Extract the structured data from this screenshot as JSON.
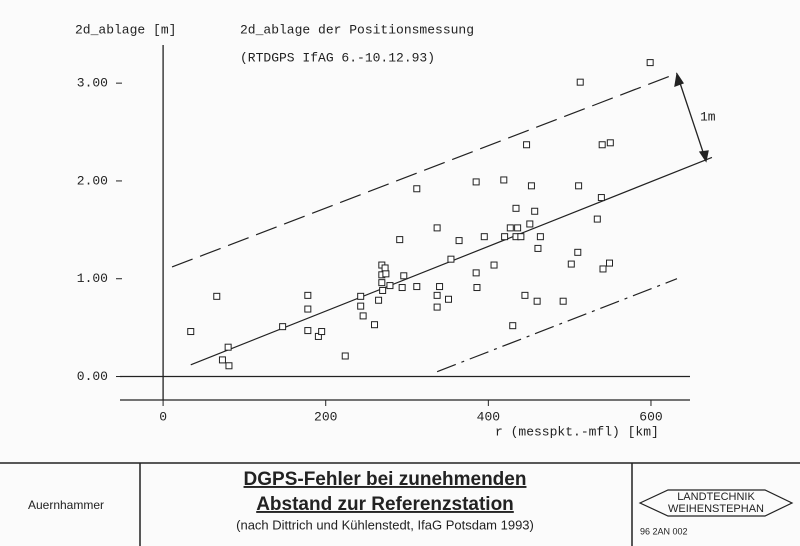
{
  "chart_data": {
    "type": "scatter",
    "title": "2d_ablage der Positionsmessung",
    "subtitle": "(RTDGPS IfAG 6.-10.12.93)",
    "y_label": "2d_ablage [m]",
    "x_label": "r (messpkt.-mfl) [km]",
    "annotation": "1m",
    "xlim": [
      -53,
      648
    ],
    "ylim": [
      -0.24,
      3.39
    ],
    "xticks": [
      0,
      200,
      400,
      600
    ],
    "yticks": [
      {
        "value": 0,
        "label": "0.00"
      },
      {
        "value": 1,
        "label": "1.00"
      },
      {
        "value": 2,
        "label": "2.00"
      },
      {
        "value": 3,
        "label": "3.00"
      }
    ],
    "color": "#222222",
    "x": [
      34,
      66,
      73,
      80,
      81,
      147,
      178,
      178,
      178,
      191,
      195,
      224,
      243,
      243,
      246,
      260,
      265,
      269,
      269,
      269,
      270,
      273,
      274,
      279,
      291,
      294,
      296,
      312,
      312,
      337,
      337,
      337,
      340,
      351,
      354,
      364,
      385,
      385,
      386,
      395,
      407,
      419,
      420,
      427,
      430,
      434,
      434,
      436,
      440,
      445,
      447,
      451,
      453,
      457,
      460,
      461,
      464,
      492,
      502,
      510,
      511,
      513,
      534,
      539,
      540,
      541,
      549,
      550,
      599
    ],
    "y": [
      0.46,
      0.82,
      0.17,
      0.3,
      0.11,
      0.51,
      0.83,
      0.69,
      0.47,
      0.41,
      0.46,
      0.21,
      0.82,
      0.72,
      0.62,
      0.53,
      0.78,
      1.14,
      1.04,
      0.96,
      0.88,
      1.11,
      1.05,
      0.93,
      1.4,
      0.91,
      1.03,
      1.92,
      0.92,
      1.52,
      0.83,
      0.71,
      0.92,
      0.79,
      1.2,
      1.39,
      1.99,
      1.06,
      0.91,
      1.43,
      1.14,
      2.01,
      1.43,
      1.52,
      0.52,
      1.72,
      1.43,
      1.52,
      1.43,
      0.83,
      2.37,
      1.56,
      1.95,
      1.69,
      0.77,
      1.31,
      1.43,
      0.77,
      1.15,
      1.27,
      1.95,
      3.01,
      1.61,
      1.83,
      2.37,
      1.1,
      1.16,
      2.39,
      3.21
    ],
    "lines": [
      {
        "style": "solid",
        "x": [
          34,
          675
        ],
        "y": [
          0.12,
          2.24
        ]
      },
      {
        "style": "dashed",
        "x": [
          11,
          632
        ],
        "y": [
          1.12,
          3.1
        ]
      },
      {
        "style": "dashdot",
        "x": [
          337,
          632
        ],
        "y": [
          0.05,
          1.0
        ]
      }
    ]
  },
  "footer": {
    "author": "Auernhammer",
    "title_lines": [
      "DGPS-Fehler bei zunehmenden",
      "Abstand zur Referenzstation"
    ],
    "source": "(nach Dittrich und Kühlenstedt, IfaG Potsdam 1993)",
    "logo_lines": [
      "LANDTECHNIK",
      "WEIHENSTEPHAN"
    ],
    "code": "96 2AN 002"
  }
}
